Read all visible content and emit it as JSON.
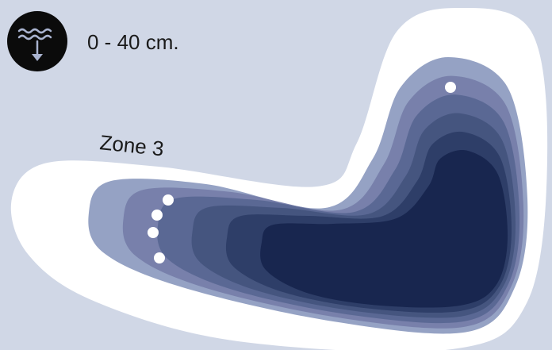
{
  "legend": {
    "depth": "0 - 40 cm."
  },
  "zone": {
    "label": "Zone 3"
  }
}
